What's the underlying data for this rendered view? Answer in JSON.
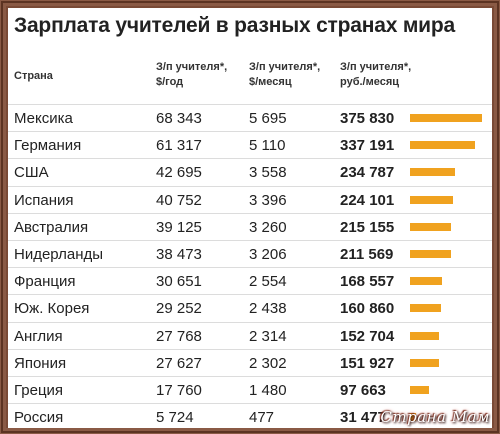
{
  "title": "Зарплата учителей в разных странах мира",
  "headers": {
    "country": "Страна",
    "year_l1": "З/п учителя*,",
    "year_l2": "$/год",
    "month_l1": "З/п учителя*,",
    "month_l2": "$/месяц",
    "rub_l1": "З/п учителя*,",
    "rub_l2": "руб./месяц"
  },
  "watermark": "Страна Мам",
  "colors": {
    "bar": "#f0a21f",
    "frame": "#7a4a36"
  },
  "chart_data": {
    "type": "table",
    "title": "Зарплата учителей в разных странах мира",
    "columns": [
      "Страна",
      "З/п учителя*, $/год",
      "З/п учителя*, $/месяц",
      "З/п учителя*, руб./месяц"
    ],
    "rows": [
      {
        "country": "Мексика",
        "year": "68 343",
        "month": "5 695",
        "rub": "375 830",
        "value": 375830
      },
      {
        "country": "Германия",
        "year": "61 317",
        "month": "5 110",
        "rub": "337 191",
        "value": 337191
      },
      {
        "country": "США",
        "year": "42 695",
        "month": "3 558",
        "rub": "234 787",
        "value": 234787
      },
      {
        "country": "Испания",
        "year": "40 752",
        "month": "3 396",
        "rub": "224 101",
        "value": 224101
      },
      {
        "country": "Австралия",
        "year": "39 125",
        "month": "3 260",
        "rub": "215 155",
        "value": 215155
      },
      {
        "country": "Нидерланды",
        "year": "38 473",
        "month": "3 206",
        "rub": "211 569",
        "value": 211569
      },
      {
        "country": "Франция",
        "year": "30 651",
        "month": "2 554",
        "rub": "168 557",
        "value": 168557
      },
      {
        "country": "Юж. Корея",
        "year": "29 252",
        "month": "2 438",
        "rub": "160 860",
        "value": 160860
      },
      {
        "country": "Англия",
        "year": "27 768",
        "month": "2 314",
        "rub": "152 704",
        "value": 152704
      },
      {
        "country": "Япония",
        "year": "27 627",
        "month": "2 302",
        "rub": "151 927",
        "value": 151927
      },
      {
        "country": "Греция",
        "year": "17 760",
        "month": "1 480",
        "rub": "97 663",
        "value": 97663
      },
      {
        "country": "Россия",
        "year": "5 724",
        "month": "477",
        "rub": "31 477",
        "value": 31477
      }
    ]
  }
}
